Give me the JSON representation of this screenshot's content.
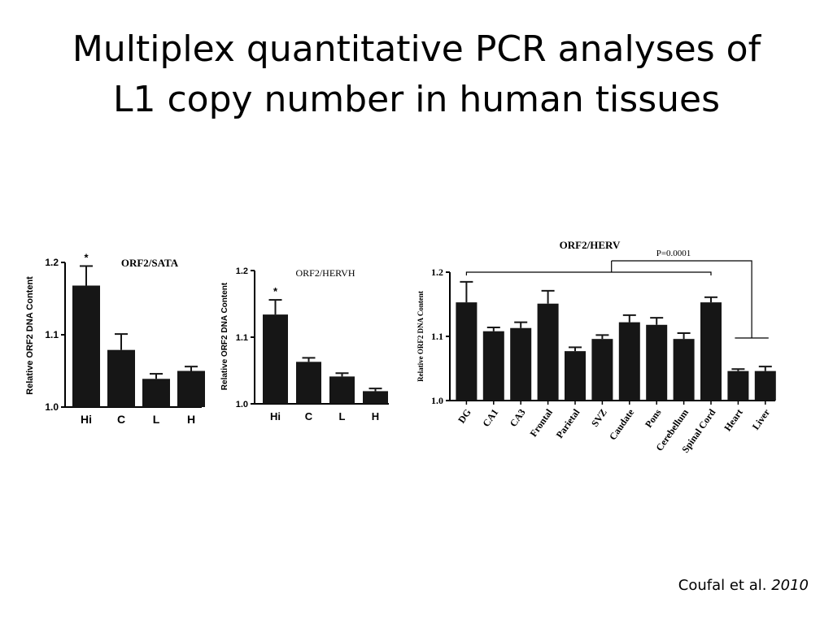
{
  "slide": {
    "title_line1": "Multiplex quantitative PCR analyses of",
    "title_line2": "L1 copy number in human tissues",
    "citation_authors": "Coufal et al.",
    "citation_year": "2010"
  },
  "colors": {
    "bar": "#161616",
    "text": "#000000",
    "background": "#ffffff"
  },
  "chart_data": [
    {
      "type": "bar",
      "title": "ORF2/SATA",
      "ylabel": "Relative  ORF2  DNA Content",
      "xlabel": "",
      "ylim": [
        1.0,
        1.2
      ],
      "yticks": [
        "1.0",
        "1.1",
        "1.2"
      ],
      "categories": [
        "Hi",
        "C",
        "L",
        "H"
      ],
      "values": [
        1.168,
        1.079,
        1.039,
        1.05
      ],
      "errors": [
        0.027,
        0.022,
        0.007,
        0.006
      ],
      "annotations": [
        {
          "category": "Hi",
          "text": "*"
        }
      ]
    },
    {
      "type": "bar",
      "title": "ORF2/HERVH",
      "ylabel": "Relative  ORF2  DNA Content",
      "xlabel": "",
      "ylim": [
        1.0,
        1.2
      ],
      "yticks": [
        "1.0",
        "1.1",
        "1.2"
      ],
      "categories": [
        "Hi",
        "C",
        "L",
        "H"
      ],
      "values": [
        1.134,
        1.063,
        1.041,
        1.019
      ],
      "errors": [
        0.022,
        0.006,
        0.005,
        0.004
      ],
      "annotations": [
        {
          "category": "Hi",
          "text": "*"
        }
      ]
    },
    {
      "type": "bar",
      "title": "ORF2/HERV",
      "ylabel": "Relative  ORF2  DNA Content",
      "xlabel": "",
      "ylim": [
        1.0,
        1.2
      ],
      "yticks": [
        "1.0",
        "1.1",
        "1.2"
      ],
      "categories": [
        "DG",
        "CA1",
        "CA3",
        "Frontal",
        "Parietal",
        "SVZ",
        "Caudate",
        "Pons",
        "Cerebellum",
        "Spinal Cord",
        "Heart",
        "Liver"
      ],
      "values": [
        1.153,
        1.108,
        1.113,
        1.151,
        1.077,
        1.096,
        1.122,
        1.118,
        1.096,
        1.153,
        1.046,
        1.046
      ],
      "errors": [
        0.032,
        0.006,
        0.009,
        0.02,
        0.006,
        0.006,
        0.011,
        0.011,
        0.009,
        0.008,
        0.003,
        0.007
      ],
      "annotations": [
        {
          "type": "significance-bracket",
          "text": "P=0.0001"
        }
      ]
    }
  ]
}
